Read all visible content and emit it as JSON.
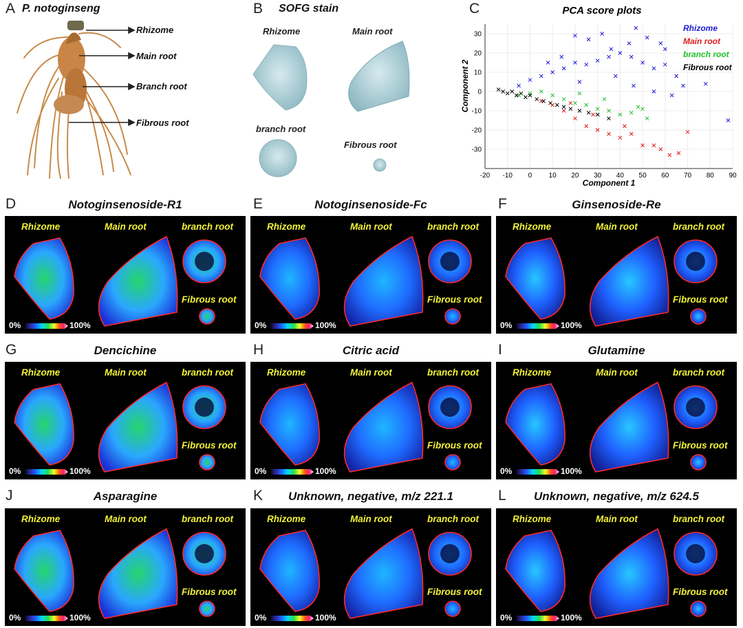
{
  "panelA": {
    "letter": "A",
    "title": "P. notoginseng",
    "labels": [
      "Rhizome",
      "Main root",
      "Branch root",
      "Fibrous root"
    ]
  },
  "panelB": {
    "letter": "B",
    "title": "SOFG stain",
    "labels": [
      "Rhizome",
      "Main root",
      "branch root",
      "Fibrous root"
    ]
  },
  "panelC": {
    "letter": "C"
  },
  "chart_data": {
    "type": "scatter",
    "title": "PCA score plots",
    "xlabel": "Component 1",
    "ylabel": "Component 2",
    "xlim": [
      -20,
      90
    ],
    "ylim": [
      -40,
      35
    ],
    "xticks": [
      -20,
      -10,
      0,
      10,
      20,
      30,
      40,
      50,
      60,
      70,
      80,
      90
    ],
    "yticks": [
      -30,
      -20,
      -10,
      0,
      10,
      20,
      30
    ],
    "grid": true,
    "marker": "x",
    "legend_position": "top-right",
    "series": [
      {
        "name": "Rhizome",
        "color": "#1f1fd6",
        "points": [
          [
            -5,
            3
          ],
          [
            0,
            6
          ],
          [
            5,
            8
          ],
          [
            10,
            10
          ],
          [
            15,
            12
          ],
          [
            20,
            15
          ],
          [
            25,
            14
          ],
          [
            30,
            16
          ],
          [
            35,
            18
          ],
          [
            40,
            20
          ],
          [
            45,
            18
          ],
          [
            50,
            15
          ],
          [
            55,
            12
          ],
          [
            60,
            22
          ],
          [
            65,
            8
          ],
          [
            68,
            3
          ],
          [
            78,
            4
          ],
          [
            88,
            -15
          ],
          [
            52,
            28
          ],
          [
            58,
            25
          ],
          [
            60,
            14
          ],
          [
            63,
            -2
          ],
          [
            36,
            22
          ],
          [
            44,
            25
          ],
          [
            20,
            29
          ],
          [
            47,
            33
          ],
          [
            32,
            30
          ],
          [
            26,
            27
          ],
          [
            14,
            18
          ],
          [
            8,
            15
          ],
          [
            22,
            5
          ],
          [
            38,
            8
          ],
          [
            46,
            3
          ],
          [
            55,
            0
          ]
        ]
      },
      {
        "name": "Main root",
        "color": "#e01c1c",
        "points": [
          [
            5,
            -5
          ],
          [
            10,
            -7
          ],
          [
            15,
            -10
          ],
          [
            20,
            -14
          ],
          [
            25,
            -18
          ],
          [
            30,
            -20
          ],
          [
            35,
            -22
          ],
          [
            40,
            -24
          ],
          [
            45,
            -22
          ],
          [
            50,
            -28
          ],
          [
            55,
            -28
          ],
          [
            58,
            -30
          ],
          [
            62,
            -33
          ],
          [
            66,
            -32
          ],
          [
            70,
            -21
          ],
          [
            42,
            -18
          ],
          [
            28,
            -12
          ],
          [
            18,
            -6
          ]
        ]
      },
      {
        "name": "branch root",
        "color": "#22c22e",
        "points": [
          [
            -5,
            -2
          ],
          [
            0,
            -1
          ],
          [
            5,
            0
          ],
          [
            10,
            -2
          ],
          [
            15,
            -4
          ],
          [
            20,
            -6
          ],
          [
            25,
            -7
          ],
          [
            30,
            -9
          ],
          [
            35,
            -10
          ],
          [
            40,
            -12
          ],
          [
            45,
            -11
          ],
          [
            50,
            -9
          ],
          [
            52,
            -14
          ],
          [
            48,
            -8
          ],
          [
            33,
            -4
          ],
          [
            22,
            -1
          ]
        ]
      },
      {
        "name": "Fibrous root",
        "color": "#000000",
        "points": [
          [
            -14,
            1
          ],
          [
            -12,
            0
          ],
          [
            -10,
            -1
          ],
          [
            -8,
            0
          ],
          [
            -6,
            -2
          ],
          [
            -4,
            -1
          ],
          [
            -2,
            -3
          ],
          [
            0,
            -2
          ],
          [
            3,
            -4
          ],
          [
            6,
            -5
          ],
          [
            9,
            -6
          ],
          [
            12,
            -7
          ],
          [
            15,
            -8
          ],
          [
            18,
            -9
          ],
          [
            22,
            -10
          ],
          [
            26,
            -11
          ],
          [
            30,
            -12
          ],
          [
            35,
            -14
          ]
        ]
      }
    ]
  },
  "scale": {
    "min": "0%",
    "max": "100%"
  },
  "msiLabels": {
    "rhizome": "Rhizome",
    "main": "Main root",
    "branch": "branch root",
    "fibrous": "Fibrous root"
  },
  "msiPanels": [
    {
      "letter": "D",
      "title": "Notoginsenoside-R1"
    },
    {
      "letter": "E",
      "title": "Notoginsenoside-Fc"
    },
    {
      "letter": "F",
      "title": "Ginsenoside-Re"
    },
    {
      "letter": "G",
      "title": "Dencichine"
    },
    {
      "letter": "H",
      "title": "Citric acid"
    },
    {
      "letter": "I",
      "title": "Glutamine"
    },
    {
      "letter": "J",
      "title": "Asparagine"
    },
    {
      "letter": "K",
      "title": "Unknown, negative, m/z 221.1"
    },
    {
      "letter": "L",
      "title": "Unknown, negative, m/z 624.5"
    }
  ]
}
